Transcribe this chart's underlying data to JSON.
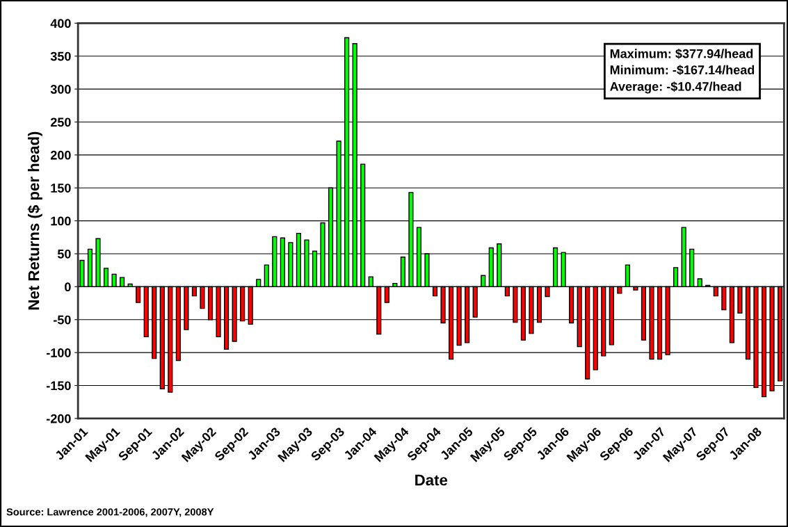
{
  "chart_data": {
    "type": "bar",
    "xlabel": "Date",
    "ylabel": "Net Returns ($ per head)",
    "categories": [
      "Jan-01",
      null,
      null,
      null,
      "May-01",
      null,
      null,
      null,
      "Sep-01",
      null,
      null,
      null,
      "Jan-02",
      null,
      null,
      null,
      "May-02",
      null,
      null,
      null,
      "Sep-02",
      null,
      null,
      null,
      "Jan-03",
      null,
      null,
      null,
      "May-03",
      null,
      null,
      null,
      "Sep-03",
      null,
      null,
      null,
      "Jan-04",
      null,
      null,
      null,
      "May-04",
      null,
      null,
      null,
      "Sep-04",
      null,
      null,
      null,
      "Jan-05",
      null,
      null,
      null,
      "May-05",
      null,
      null,
      null,
      "Sep-05",
      null,
      null,
      null,
      "Jan-06",
      null,
      null,
      null,
      "May-06",
      null,
      null,
      null,
      "Sep-06",
      null,
      null,
      null,
      "Jan-07",
      null,
      null,
      null,
      "May-07",
      null,
      null,
      null,
      "Sep-07",
      null,
      null,
      null,
      "Jan-08",
      null,
      null,
      null
    ],
    "values": [
      40,
      57,
      73,
      28,
      19,
      14,
      4,
      -24,
      -76,
      -109,
      -155,
      -160,
      -112,
      -65,
      -14,
      -33,
      -50,
      -76,
      -95,
      -83,
      -52,
      -57,
      11,
      33,
      76,
      74,
      67,
      81,
      71,
      54,
      97,
      150,
      221,
      378,
      369,
      186,
      15,
      -72,
      -24,
      5,
      45,
      143,
      90,
      50,
      -14,
      -55,
      -110,
      -89,
      -85,
      -46,
      17,
      59,
      65,
      -14,
      -54,
      -81,
      -71,
      -54,
      -15,
      59,
      52,
      -55,
      -91,
      -140,
      -126,
      -105,
      -88,
      -10,
      33,
      -5,
      -81,
      -110,
      -110,
      -103,
      29,
      90,
      57,
      12,
      2,
      -14,
      -35,
      -85,
      -40,
      -110,
      -153,
      -167,
      -158,
      -143
    ],
    "colors": [
      "#00ff00",
      "#00ff00",
      "#00ff00",
      "#00ff00",
      "#00ff00",
      "#00ff00",
      "#00ff00",
      "#ff0000",
      "#ff0000",
      "#ff0000",
      "#ff0000",
      "#ff0000",
      "#ff0000",
      "#ff0000",
      "#ff0000",
      "#ff0000",
      "#ff0000",
      "#ff0000",
      "#ff0000",
      "#ff0000",
      "#ff0000",
      "#ff0000",
      "#00ff00",
      "#00ff00",
      "#00ff00",
      "#00ff00",
      "#00ff00",
      "#00ff00",
      "#00ff00",
      "#00ff00",
      "#00ff00",
      "#00ff00",
      "#00ff00",
      "#00ff00",
      "#00ff00",
      "#00ff00",
      "#00ff00",
      "#ff0000",
      "#ff0000",
      "#00ff00",
      "#00ff00",
      "#00ff00",
      "#00ff00",
      "#00ff00",
      "#ff0000",
      "#ff0000",
      "#ff0000",
      "#ff0000",
      "#ff0000",
      "#ff0000",
      "#00ff00",
      "#00ff00",
      "#00ff00",
      "#ff0000",
      "#ff0000",
      "#ff0000",
      "#ff0000",
      "#ff0000",
      "#ff0000",
      "#00ff00",
      "#00ff00",
      "#ff0000",
      "#ff0000",
      "#ff0000",
      "#ff0000",
      "#ff0000",
      "#ff0000",
      "#ff0000",
      "#00ff00",
      "#ff0000",
      "#ff0000",
      "#ff0000",
      "#ff0000",
      "#ff0000",
      "#00ff00",
      "#00ff00",
      "#00ff00",
      "#00ff00",
      "#00ff00",
      "#ff0000",
      "#ff0000",
      "#ff0000",
      "#ff0000",
      "#ff0000",
      "#ff0000",
      "#ff0000",
      "#ff0000",
      "#ff0000"
    ],
    "ylim": [
      -200,
      400
    ],
    "yticks": [
      -200,
      -150,
      -100,
      -50,
      0,
      50,
      100,
      150,
      200,
      250,
      300,
      350,
      400
    ],
    "grid": "y",
    "legend": false,
    "annotations": [
      "Maximum: $377.94/head\nMinimum: -$167.14/head\nAverage: -$10.47/head",
      "Source: Lawrence 2001-2006, 2007Y, 2008Y"
    ]
  }
}
